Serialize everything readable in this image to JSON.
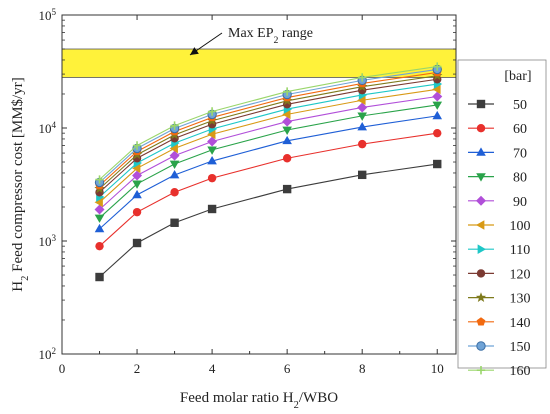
{
  "chart_data": {
    "type": "line",
    "xlabel": "Feed molar ratio H",
    "xlabel_sub": "2",
    "xlabel_suffix": "/WBO",
    "ylabel": "H",
    "ylabel_sub": "2",
    "ylabel_suffix": " Feed compressor cost [MM$/yr]",
    "xlim": [
      0,
      10.5
    ],
    "ylim": [
      100,
      100000
    ],
    "yscale": "log",
    "xticks": [
      "0",
      "2",
      "4",
      "6",
      "8",
      "10"
    ],
    "xtick_values": [
      0,
      2,
      4,
      6,
      8,
      10
    ],
    "yticks_base": [
      "10",
      "10",
      "10",
      "10"
    ],
    "yticks_exp": [
      "2",
      "3",
      "4",
      "5"
    ],
    "ytick_values": [
      100,
      1000,
      10000,
      100000
    ],
    "grid": false,
    "legend_title": "[bar]",
    "legend_position": "right",
    "x": [
      1,
      2,
      3,
      4,
      6,
      8,
      10
    ],
    "series": [
      {
        "name": "50",
        "color": "#3c3c3c",
        "marker": "square",
        "values": [
          480,
          960,
          1450,
          1920,
          2880,
          3850,
          4800
        ]
      },
      {
        "name": "60",
        "color": "#e8302c",
        "marker": "circle",
        "values": [
          900,
          1800,
          2700,
          3600,
          5400,
          7200,
          9000
        ]
      },
      {
        "name": "70",
        "color": "#1f5fd6",
        "marker": "triangle-up",
        "values": [
          1280,
          2560,
          3840,
          5100,
          7700,
          10200,
          12800
        ]
      },
      {
        "name": "80",
        "color": "#2aa34a",
        "marker": "triangle-down",
        "values": [
          1600,
          3200,
          4800,
          6400,
          9600,
          12800,
          16000
        ]
      },
      {
        "name": "90",
        "color": "#b14fd9",
        "marker": "diamond",
        "values": [
          1900,
          3800,
          5700,
          7600,
          11400,
          15200,
          19000
        ]
      },
      {
        "name": "100",
        "color": "#d89a16",
        "marker": "triangle-left",
        "values": [
          2200,
          4400,
          6600,
          8800,
          13200,
          17600,
          22000
        ]
      },
      {
        "name": "110",
        "color": "#1ec7c7",
        "marker": "triangle-right",
        "values": [
          2450,
          4900,
          7350,
          9800,
          14700,
          19600,
          24500
        ]
      },
      {
        "name": "120",
        "color": "#7b3a32",
        "marker": "circle",
        "values": [
          2700,
          5400,
          8100,
          10800,
          16200,
          21600,
          27000
        ]
      },
      {
        "name": "130",
        "color": "#7e7a1c",
        "marker": "star",
        "values": [
          2900,
          5800,
          8700,
          11600,
          17400,
          23200,
          29000
        ]
      },
      {
        "name": "140",
        "color": "#f26a10",
        "marker": "pentagon",
        "values": [
          3100,
          6200,
          9300,
          12400,
          18600,
          24800,
          31000
        ]
      },
      {
        "name": "150",
        "color": "#6fa3d6",
        "marker": "circle-edge",
        "values": [
          3300,
          6600,
          9900,
          13200,
          19800,
          26400,
          33000
        ]
      },
      {
        "name": "160",
        "color": "#9ad66b",
        "marker": "plus",
        "values": [
          3500,
          7000,
          10500,
          14000,
          21000,
          28000,
          35000
        ]
      }
    ],
    "annotation": {
      "label_prefix": "Max EP",
      "label_sub": "2",
      "label_suffix": " range",
      "band_ymin": 28000,
      "band_ymax": 50000,
      "band_color": "#fff23a"
    }
  }
}
